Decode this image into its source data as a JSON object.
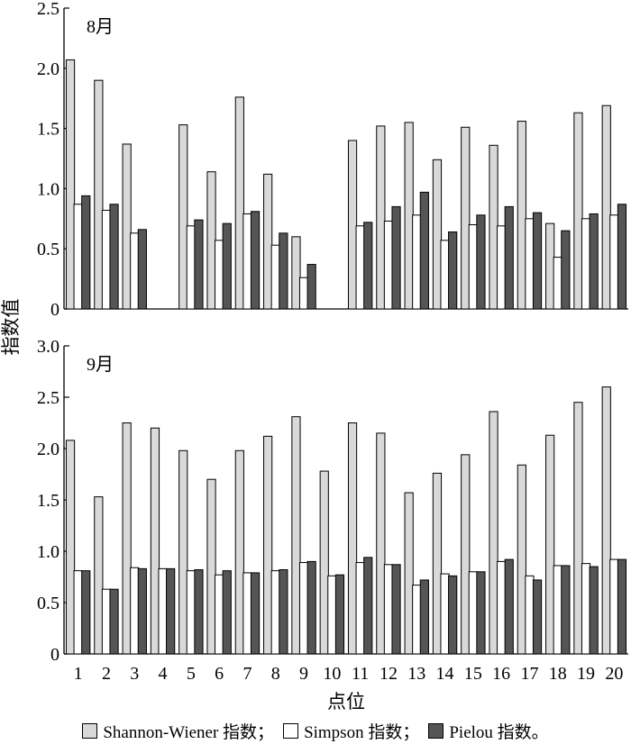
{
  "chart_data": {
    "type": "bar",
    "ylabel": "指数值",
    "xlabel": "点位",
    "categories": [
      "1",
      "2",
      "3",
      "4",
      "5",
      "6",
      "7",
      "8",
      "9",
      "10",
      "11",
      "12",
      "13",
      "14",
      "15",
      "16",
      "17",
      "18",
      "19",
      "20"
    ],
    "panels": [
      {
        "label": "8月",
        "ylim": [
          0,
          2.5
        ],
        "yticks": [
          "0",
          "0.5",
          "1.0",
          "1.5",
          "2.0",
          "2.5"
        ],
        "series": [
          {
            "name": "Shannon-Wiener 指数",
            "color": "#d9d9d9",
            "values": [
              2.07,
              1.9,
              1.37,
              null,
              1.53,
              1.14,
              1.76,
              1.12,
              0.6,
              null,
              1.4,
              1.52,
              1.55,
              1.24,
              1.51,
              1.36,
              1.56,
              0.71,
              1.63,
              1.69
            ]
          },
          {
            "name": "Simpson 指数",
            "color": "#ffffff",
            "values": [
              0.87,
              0.82,
              0.63,
              null,
              0.69,
              0.57,
              0.79,
              0.53,
              0.26,
              null,
              0.69,
              0.73,
              0.78,
              0.57,
              0.7,
              0.69,
              0.75,
              0.43,
              0.75,
              0.78
            ]
          },
          {
            "name": "Pielou 指数",
            "color": "#555555",
            "values": [
              0.94,
              0.87,
              0.66,
              null,
              0.74,
              0.71,
              0.81,
              0.63,
              0.37,
              null,
              0.72,
              0.85,
              0.97,
              0.64,
              0.78,
              0.85,
              0.8,
              0.65,
              0.79,
              0.87
            ]
          }
        ]
      },
      {
        "label": "9月",
        "ylim": [
          0,
          3.0
        ],
        "yticks": [
          "0",
          "0.5",
          "1.0",
          "1.5",
          "2.0",
          "2.5",
          "3.0"
        ],
        "series": [
          {
            "name": "Shannon-Wiener 指数",
            "color": "#d9d9d9",
            "values": [
              2.08,
              1.53,
              2.25,
              2.2,
              1.98,
              1.7,
              1.98,
              2.12,
              2.31,
              1.78,
              2.25,
              2.15,
              1.57,
              1.76,
              1.94,
              2.36,
              1.84,
              2.13,
              2.45,
              2.6
            ]
          },
          {
            "name": "Simpson 指数",
            "color": "#ffffff",
            "values": [
              0.81,
              0.63,
              0.84,
              0.83,
              0.81,
              0.77,
              0.79,
              0.81,
              0.89,
              0.76,
              0.89,
              0.87,
              0.67,
              0.78,
              0.8,
              0.9,
              0.76,
              0.86,
              0.88,
              0.92
            ]
          },
          {
            "name": "Pielou 指数",
            "color": "#555555",
            "values": [
              0.81,
              0.63,
              0.83,
              0.83,
              0.82,
              0.81,
              0.79,
              0.82,
              0.9,
              0.77,
              0.94,
              0.87,
              0.72,
              0.76,
              0.8,
              0.92,
              0.72,
              0.86,
              0.85,
              0.92
            ]
          }
        ]
      }
    ],
    "legend": {
      "placement": "bottom",
      "items": [
        {
          "label": "Shannon-Wiener 指数；",
          "color": "#d9d9d9"
        },
        {
          "label": "Simpson 指数；",
          "color": "#ffffff"
        },
        {
          "label": "Pielou 指数。",
          "color": "#555555"
        }
      ]
    },
    "grid": false
  }
}
